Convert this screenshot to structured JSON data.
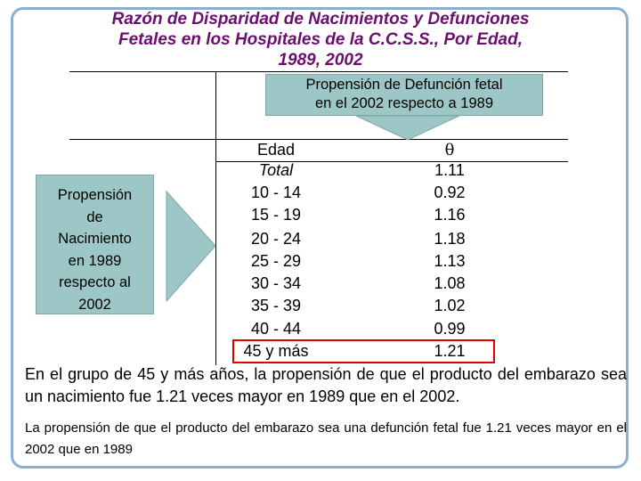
{
  "title": {
    "line1": "Razón de Disparidad de Nacimientos y Defunciones",
    "line2": "Fetales en los Hospitales de la C.C.S.S., Por Edad,",
    "line3": "1989, 2002"
  },
  "callout_top": {
    "line1": "Propensión de Defunción fetal",
    "line2": "en el 2002 respecto a 1989"
  },
  "callout_left": {
    "lines": [
      "Propensión",
      "de",
      "Nacimiento",
      "en 1989",
      "respecto al",
      "2002"
    ]
  },
  "table": {
    "headers": {
      "edad": "Edad",
      "theta": "θ"
    },
    "rows": [
      {
        "edad": "Total",
        "theta": "1.11"
      },
      {
        "edad": "10 - 14",
        "theta": "0.92"
      },
      {
        "edad": "15 - 19",
        "theta": "1.16"
      },
      {
        "edad": "20 - 24",
        "theta": "1.18"
      },
      {
        "edad": "25 - 29",
        "theta": "1.13"
      },
      {
        "edad": "30 - 34",
        "theta": "1.08"
      },
      {
        "edad": "35 - 39",
        "theta": "1.02"
      },
      {
        "edad": "40 - 44",
        "theta": "0.99"
      },
      {
        "edad": "45 y más",
        "theta": "1.21"
      }
    ],
    "highlighted_row": "45 y más"
  },
  "paragraph1": "En el grupo de 45 y más años, la propensión de que el producto del embarazo sea un nacimiento fue 1.21 veces mayor en 1989 que en el 2002.",
  "paragraph2": "La propensión de que el producto del embarazo sea una defunción fetal fue 1.21 veces mayor en el 2002 que en 1989",
  "colors": {
    "title": "#6b0f6f",
    "callout_fill": "#9dc6c6",
    "frame": "#8aaed4",
    "highlight": "#e00000"
  }
}
